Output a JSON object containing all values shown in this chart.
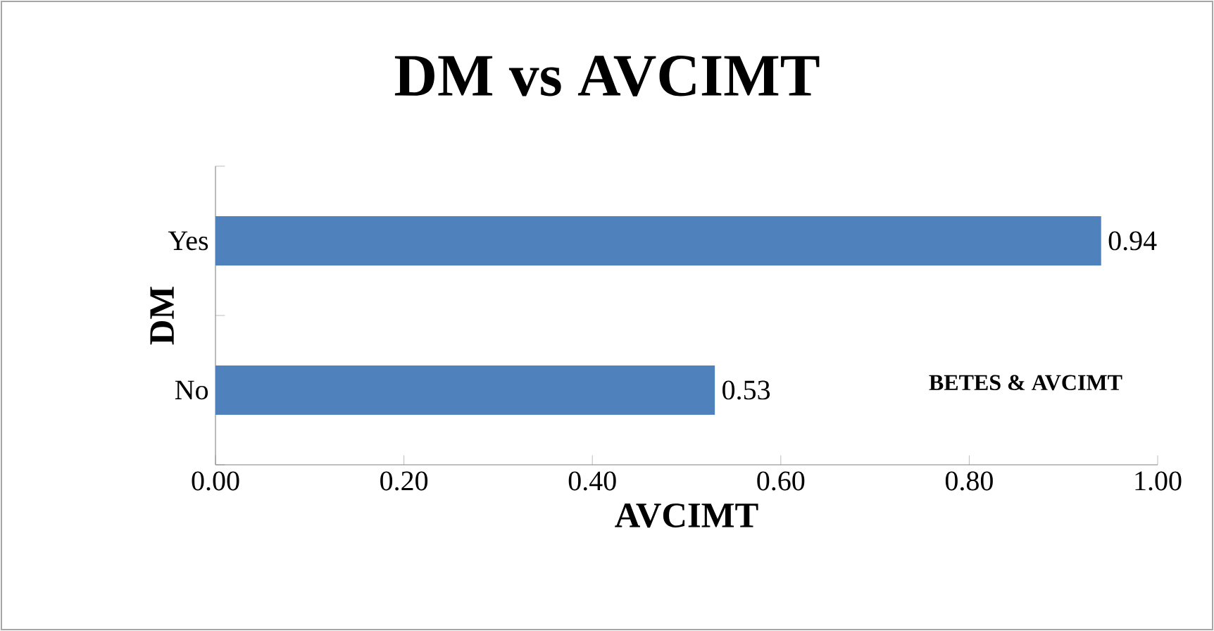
{
  "chart_data": {
    "type": "bar",
    "orientation": "horizontal",
    "title": "DM vs AVCIMT",
    "xlabel": "AVCIMT",
    "ylabel": "DM",
    "categories": [
      "Yes",
      "No"
    ],
    "values": [
      0.94,
      0.53
    ],
    "color": "#4f81bd",
    "xlim": [
      0,
      1
    ],
    "xticks": [
      {
        "value": 0,
        "label": "0.00"
      },
      {
        "value": 0.2,
        "label": "0.20"
      },
      {
        "value": 0.4,
        "label": "0.40"
      },
      {
        "value": 0.6,
        "label": "0.60"
      },
      {
        "value": 0.8,
        "label": "0.80"
      },
      {
        "value": 1,
        "label": "1.00"
      }
    ],
    "data_labels": true,
    "annotations": [
      "BETES & AVCIMT"
    ]
  }
}
